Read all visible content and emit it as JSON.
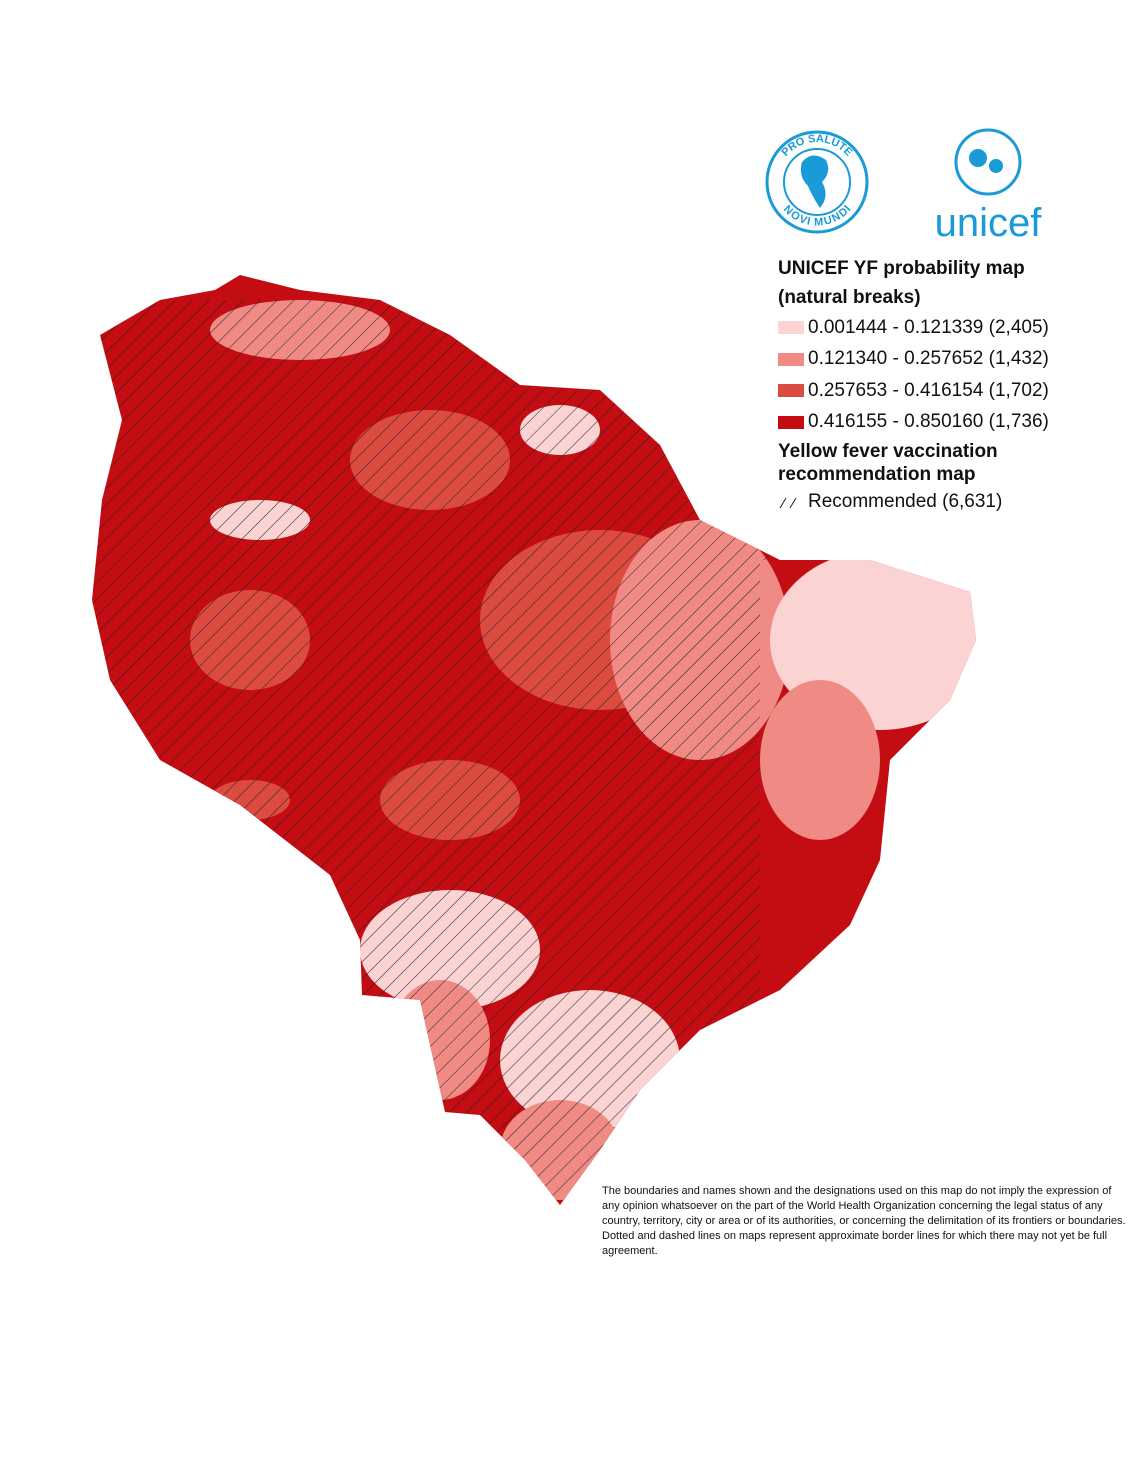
{
  "logos": {
    "paho": {
      "top": "PRO SALUTE",
      "bottom": "NOVI MUNDI"
    },
    "unicef": "unicef"
  },
  "legend": {
    "title": "UNICEF YF probability map (natural breaks)",
    "items": [
      {
        "label": "0.001444 - 0.121339 (2,405)",
        "color": "#fbd3d3"
      },
      {
        "label": "0.121340 - 0.257652 (1,432)",
        "color": "#f08a84"
      },
      {
        "label": "0.257653 - 0.416154 (1,702)",
        "color": "#dc4b40"
      },
      {
        "label": "0.416155 - 0.850160 (1,736)",
        "color": "#c40d12"
      }
    ]
  },
  "legend2": {
    "title": "Yellow fever vaccination recommendation map",
    "items": [
      {
        "label": "Recommended (6,631)"
      }
    ]
  },
  "disclaimer": "The boundaries and names shown and the designations used on this map do not imply the expression of any opinion whatsoever on the part of the World Health Organization concerning the legal status of any country, territory, city or area or of its authorities, or concerning the delimitation of its frontiers or boundaries. Dotted and dashed lines on maps represent approximate border lines for which there may not yet be full agreement."
}
